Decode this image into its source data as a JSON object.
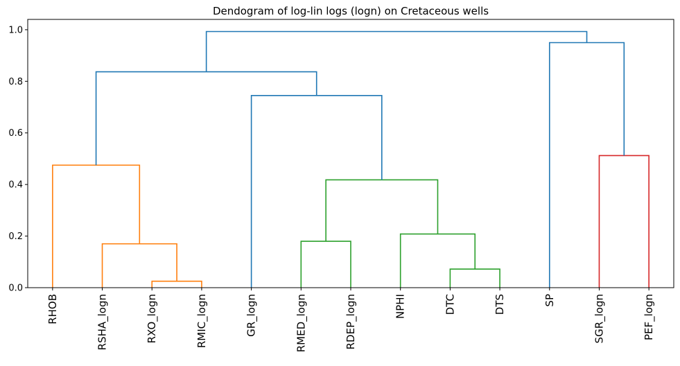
{
  "chart_data": {
    "type": "dendrogram",
    "title": "Dendogram of log-lin logs (logn) on Cretaceous wells",
    "xlabel": "",
    "ylabel": "",
    "ylim": [
      0,
      1.04
    ],
    "yticks": [
      "0.0",
      "0.2",
      "0.4",
      "0.6",
      "0.8",
      "1.0"
    ],
    "ytick_values": [
      0.0,
      0.2,
      0.4,
      0.6,
      0.8,
      1.0
    ],
    "grid": false,
    "leaves": [
      "RHOB",
      "RSHA_logn",
      "RXO_logn",
      "RMIC_logn",
      "GR_logn",
      "RMED_logn",
      "RDEP_logn",
      "NPHI",
      "DTC",
      "DTS",
      "SP",
      "SGR_logn",
      "PEF_logn"
    ],
    "colors": {
      "orange": "#ff7f0e",
      "green": "#2ca02c",
      "red": "#d62728",
      "blue": "#1f77b4"
    },
    "links": [
      {
        "left": 2,
        "right": 3,
        "height": 0.025,
        "color": "orange"
      },
      {
        "left": 1,
        "right": "2-3",
        "height": 0.17,
        "color": "orange"
      },
      {
        "left": 0,
        "right": "1-3",
        "height": 0.475,
        "color": "orange"
      },
      {
        "left": 5,
        "right": 6,
        "height": 0.18,
        "color": "green"
      },
      {
        "left": 8,
        "right": 9,
        "height": 0.072,
        "color": "green"
      },
      {
        "left": 7,
        "right": "8-9",
        "height": 0.208,
        "color": "green"
      },
      {
        "left": "5-6",
        "right": "7-9",
        "height": 0.418,
        "color": "green"
      },
      {
        "left": 4,
        "right": "5-9",
        "height": 0.745,
        "color": "blue"
      },
      {
        "left": "0-3",
        "right": "4-9",
        "height": 0.837,
        "color": "blue"
      },
      {
        "left": 11,
        "right": 12,
        "height": 0.512,
        "color": "red"
      },
      {
        "left": 10,
        "right": "11-12",
        "height": 0.95,
        "color": "blue"
      },
      {
        "left": "0-9",
        "right": "10-12",
        "height": 0.993,
        "color": "blue"
      }
    ]
  }
}
